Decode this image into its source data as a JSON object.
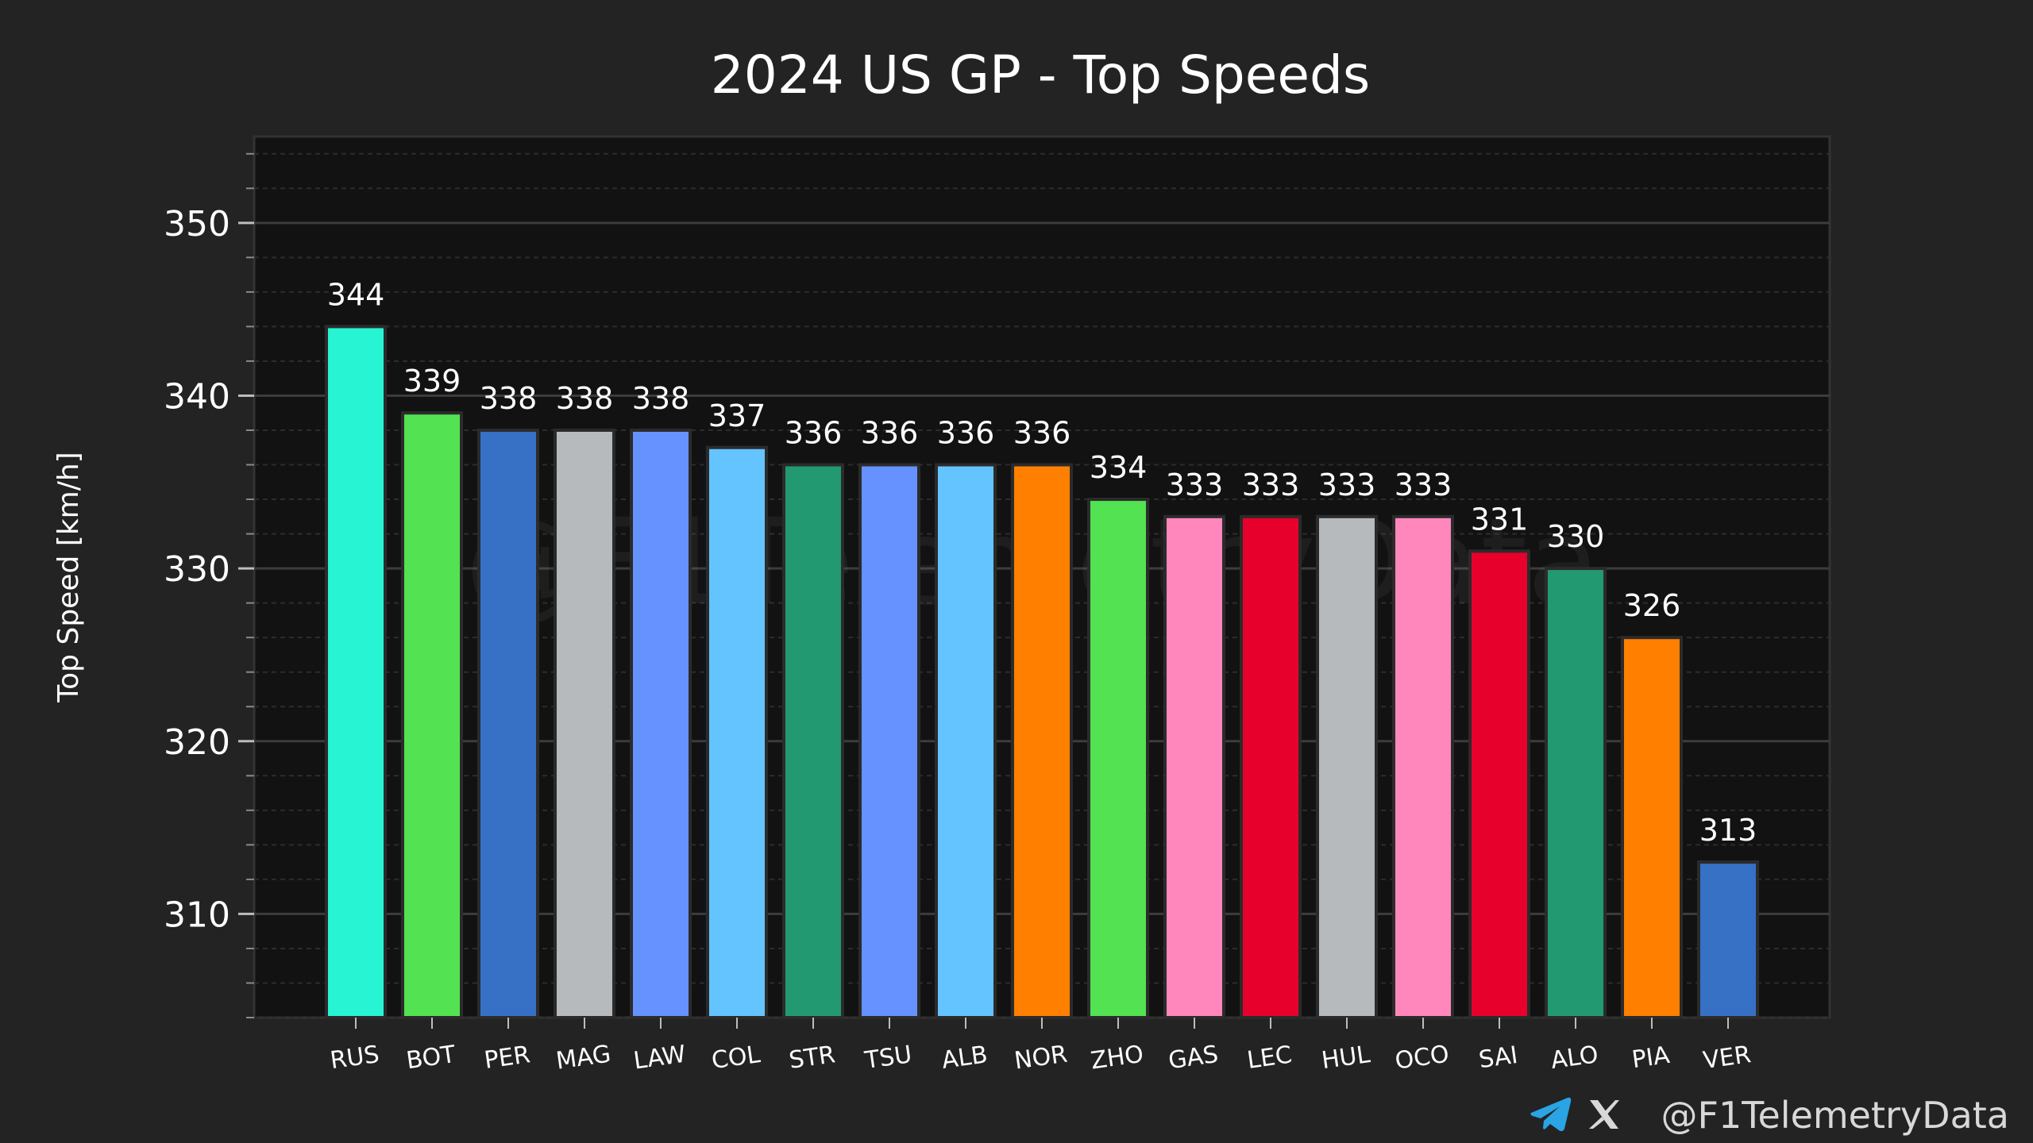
{
  "chart_data": {
    "type": "bar",
    "title": "2024 US GP - Top Speeds",
    "xlabel": "",
    "ylabel": "Top Speed [km/h]",
    "ylim": [
      304,
      355
    ],
    "yticks": [
      310,
      320,
      330,
      340,
      350
    ],
    "grid": true,
    "categories": [
      "RUS",
      "BOT",
      "PER",
      "MAG",
      "LAW",
      "COL",
      "STR",
      "TSU",
      "ALB",
      "NOR",
      "ZHO",
      "GAS",
      "LEC",
      "HUL",
      "OCO",
      "SAI",
      "ALO",
      "PIA",
      "VER"
    ],
    "values": [
      344,
      339,
      338,
      338,
      338,
      337,
      336,
      336,
      336,
      336,
      334,
      333,
      333,
      333,
      333,
      331,
      330,
      326,
      313
    ],
    "value_labels": [
      "344",
      "339",
      "338",
      "338",
      "338",
      "337",
      "336",
      "336",
      "336",
      "336",
      "334",
      "333",
      "333",
      "333",
      "333",
      "331",
      "330",
      "326",
      "313"
    ],
    "colors": [
      "#27f4d2",
      "#52e252",
      "#3671c6",
      "#b6babd",
      "#6692ff",
      "#64c4ff",
      "#229971",
      "#6692ff",
      "#64c4ff",
      "#ff8000",
      "#52e252",
      "#ff87bc",
      "#e8002d",
      "#b6babd",
      "#ff87bc",
      "#e8002d",
      "#229971",
      "#ff8000",
      "#3671c6"
    ]
  },
  "watermark": "@F1TelemetryData",
  "credit": {
    "handle": "@F1TelemetryData",
    "icons": [
      "telegram-icon",
      "x-icon"
    ]
  }
}
